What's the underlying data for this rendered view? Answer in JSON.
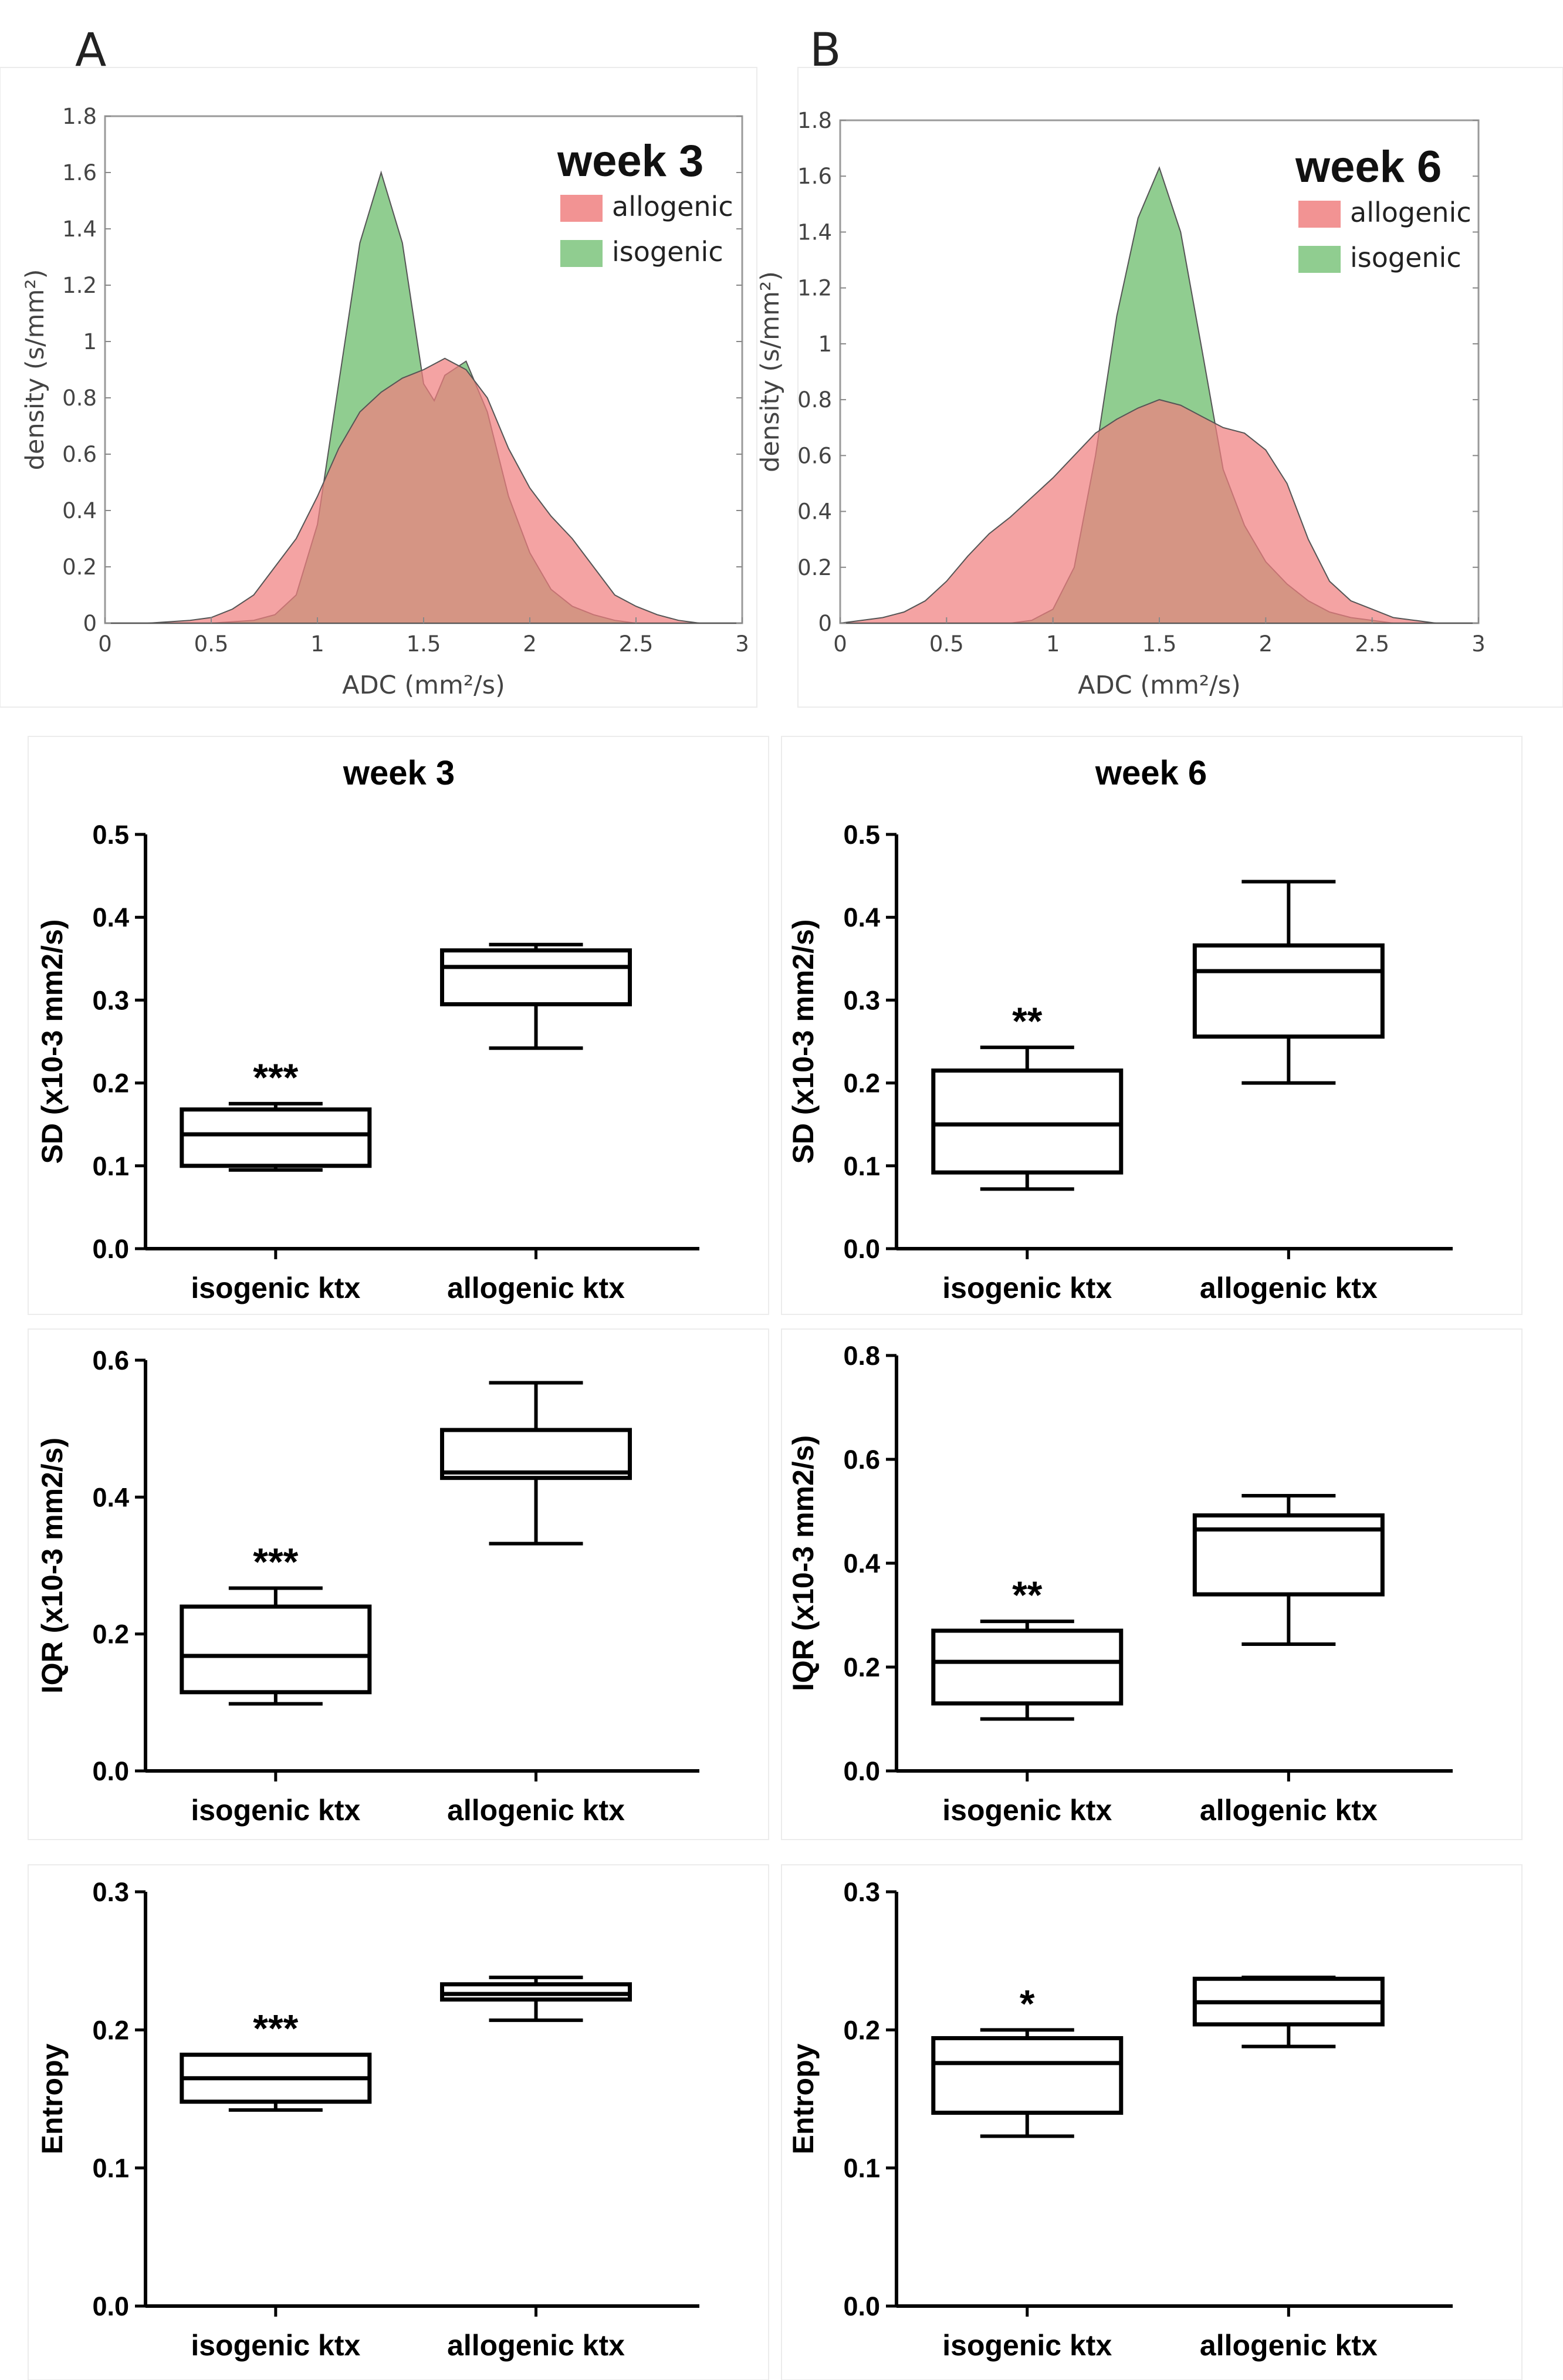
{
  "panel_labels": [
    "A",
    "B"
  ],
  "chart_data": [
    {
      "type": "area",
      "panel": "A",
      "title": "week 3",
      "xlabel": "ADC (mm²/s)",
      "ylabel": "density (s/mm²)",
      "xlim": [
        0,
        3
      ],
      "ylim": [
        0,
        1.8
      ],
      "xticks": [
        0,
        0.5,
        1,
        1.5,
        2,
        2.5,
        3
      ],
      "xtick_labels": [
        "0",
        "0.5",
        "1",
        "1.5",
        "2",
        "2.5",
        "3"
      ],
      "yticks": [
        0,
        0.2,
        0.4,
        0.6,
        0.8,
        1,
        1.2,
        1.4,
        1.6,
        1.8
      ],
      "ytick_labels": [
        "0",
        "0.2",
        "0.4",
        "0.6",
        "0.8",
        "1",
        "1.2",
        "1.4",
        "1.6",
        "1.8"
      ],
      "x": [
        0,
        0.2,
        0.4,
        0.5,
        0.6,
        0.7,
        0.8,
        0.9,
        1.0,
        1.1,
        1.2,
        1.3,
        1.4,
        1.5,
        1.55,
        1.6,
        1.7,
        1.8,
        1.9,
        2.0,
        2.1,
        2.2,
        2.3,
        2.4,
        2.5,
        2.6,
        2.7,
        2.8,
        3.0
      ],
      "series": [
        {
          "name": "allogenic",
          "color": "#f08080",
          "values": [
            0,
            0,
            0.01,
            0.02,
            0.05,
            0.1,
            0.2,
            0.3,
            0.45,
            0.62,
            0.75,
            0.82,
            0.87,
            0.9,
            0.92,
            0.94,
            0.9,
            0.8,
            0.62,
            0.48,
            0.38,
            0.3,
            0.2,
            0.1,
            0.06,
            0.03,
            0.01,
            0,
            0
          ]
        },
        {
          "name": "isogenic",
          "color": "#7cc47c",
          "values": [
            0,
            0,
            0,
            0,
            0.005,
            0.01,
            0.03,
            0.1,
            0.35,
            0.85,
            1.35,
            1.6,
            1.35,
            0.85,
            0.79,
            0.88,
            0.93,
            0.75,
            0.45,
            0.25,
            0.12,
            0.06,
            0.03,
            0.01,
            0,
            0,
            0,
            0,
            0
          ]
        }
      ]
    },
    {
      "type": "area",
      "panel": "B",
      "title": "week 6",
      "xlabel": "ADC (mm²/s)",
      "ylabel": "density (s/mm²)",
      "xlim": [
        0,
        3
      ],
      "ylim": [
        0,
        1.8
      ],
      "xticks": [
        0,
        0.5,
        1,
        1.5,
        2,
        2.5,
        3
      ],
      "xtick_labels": [
        "0",
        "0.5",
        "1",
        "1.5",
        "2",
        "2.5",
        "3"
      ],
      "yticks": [
        0,
        0.2,
        0.4,
        0.6,
        0.8,
        1,
        1.2,
        1.4,
        1.6,
        1.8
      ],
      "ytick_labels": [
        "0",
        "0.2",
        "0.4",
        "0.6",
        "0.8",
        "1",
        "1.2",
        "1.4",
        "1.6",
        "1.8"
      ],
      "x": [
        0,
        0.1,
        0.2,
        0.3,
        0.4,
        0.5,
        0.6,
        0.7,
        0.8,
        0.9,
        1.0,
        1.1,
        1.2,
        1.3,
        1.4,
        1.5,
        1.6,
        1.7,
        1.8,
        1.9,
        2.0,
        2.1,
        2.2,
        2.3,
        2.4,
        2.5,
        2.6,
        2.7,
        2.8,
        3.0
      ],
      "series": [
        {
          "name": "allogenic",
          "color": "#f08080",
          "values": [
            0,
            0.01,
            0.02,
            0.04,
            0.08,
            0.15,
            0.24,
            0.32,
            0.38,
            0.45,
            0.52,
            0.6,
            0.68,
            0.73,
            0.77,
            0.8,
            0.78,
            0.74,
            0.7,
            0.68,
            0.62,
            0.5,
            0.3,
            0.15,
            0.08,
            0.05,
            0.02,
            0.01,
            0,
            0
          ]
        },
        {
          "name": "isogenic",
          "color": "#7cc47c",
          "values": [
            0,
            0,
            0,
            0,
            0,
            0,
            0,
            0,
            0,
            0.01,
            0.05,
            0.2,
            0.6,
            1.1,
            1.45,
            1.63,
            1.4,
            0.98,
            0.55,
            0.35,
            0.22,
            0.14,
            0.08,
            0.04,
            0.02,
            0.01,
            0,
            0,
            0,
            0
          ]
        }
      ]
    },
    {
      "type": "box",
      "title": "week 3",
      "ylabel": "SD (x10-3 mm2/s)",
      "ylim": [
        0,
        0.5
      ],
      "yticks": [
        0,
        0.1,
        0.2,
        0.3,
        0.4,
        0.5
      ],
      "ytick_labels": [
        "0.0",
        "0.1",
        "0.2",
        "0.3",
        "0.4",
        "0.5"
      ],
      "categories": [
        "isogenic ktx",
        "allogenic ktx"
      ],
      "boxes": [
        {
          "min": 0.095,
          "q1": 0.1,
          "median": 0.138,
          "q3": 0.168,
          "max": 0.175,
          "sig": "***"
        },
        {
          "min": 0.242,
          "q1": 0.295,
          "median": 0.34,
          "q3": 0.36,
          "max": 0.367,
          "sig": ""
        }
      ]
    },
    {
      "type": "box",
      "title": "week 6",
      "ylabel": "SD (x10-3 mm2/s)",
      "ylim": [
        0,
        0.5
      ],
      "yticks": [
        0,
        0.1,
        0.2,
        0.3,
        0.4,
        0.5
      ],
      "ytick_labels": [
        "0.0",
        "0.1",
        "0.2",
        "0.3",
        "0.4",
        "0.5"
      ],
      "categories": [
        "isogenic ktx",
        "allogenic ktx"
      ],
      "boxes": [
        {
          "min": 0.072,
          "q1": 0.092,
          "median": 0.15,
          "q3": 0.215,
          "max": 0.243,
          "sig": "**"
        },
        {
          "min": 0.2,
          "q1": 0.256,
          "median": 0.335,
          "q3": 0.366,
          "max": 0.443,
          "sig": ""
        }
      ]
    },
    {
      "type": "box",
      "title": "",
      "ylabel": "IQR (x10-3 mm2/s)",
      "ylim": [
        0,
        0.6
      ],
      "yticks": [
        0,
        0.2,
        0.4,
        0.6
      ],
      "ytick_labels": [
        "0.0",
        "0.2",
        "0.4",
        "0.6"
      ],
      "categories": [
        "isogenic ktx",
        "allogenic ktx"
      ],
      "boxes": [
        {
          "min": 0.098,
          "q1": 0.115,
          "median": 0.168,
          "q3": 0.24,
          "max": 0.267,
          "sig": "***"
        },
        {
          "min": 0.332,
          "q1": 0.428,
          "median": 0.436,
          "q3": 0.498,
          "max": 0.567,
          "sig": ""
        }
      ]
    },
    {
      "type": "box",
      "title": "",
      "ylabel": "IQR (x10-3 mm2/s)",
      "ylim": [
        0,
        0.8
      ],
      "yticks": [
        0,
        0.2,
        0.4,
        0.6,
        0.8
      ],
      "ytick_labels": [
        "0.0",
        "0.2",
        "0.4",
        "0.6",
        "0.8"
      ],
      "categories": [
        "isogenic ktx",
        "allogenic ktx"
      ],
      "boxes": [
        {
          "min": 0.1,
          "q1": 0.13,
          "median": 0.21,
          "q3": 0.27,
          "max": 0.288,
          "sig": "**"
        },
        {
          "min": 0.244,
          "q1": 0.34,
          "median": 0.465,
          "q3": 0.492,
          "max": 0.53,
          "sig": ""
        }
      ]
    },
    {
      "type": "box",
      "title": "",
      "ylabel": "Entropy",
      "ylim": [
        0,
        0.3
      ],
      "yticks": [
        0,
        0.1,
        0.2,
        0.3
      ],
      "ytick_labels": [
        "0.0",
        "0.1",
        "0.2",
        "0.3"
      ],
      "categories": [
        "isogenic ktx",
        "allogenic ktx"
      ],
      "boxes": [
        {
          "min": 0.142,
          "q1": 0.148,
          "median": 0.165,
          "q3": 0.182,
          "max": 0.182,
          "sig": "***"
        },
        {
          "min": 0.207,
          "q1": 0.222,
          "median": 0.226,
          "q3": 0.233,
          "max": 0.238,
          "sig": ""
        }
      ]
    },
    {
      "type": "box",
      "title": "",
      "ylabel": "Entropy",
      "ylim": [
        0,
        0.3
      ],
      "yticks": [
        0,
        0.1,
        0.2,
        0.3
      ],
      "ytick_labels": [
        "0.0",
        "0.1",
        "0.2",
        "0.3"
      ],
      "categories": [
        "isogenic ktx",
        "allogenic ktx"
      ],
      "boxes": [
        {
          "min": 0.123,
          "q1": 0.14,
          "median": 0.176,
          "q3": 0.194,
          "max": 0.2,
          "sig": "*"
        },
        {
          "min": 0.188,
          "q1": 0.204,
          "median": 0.22,
          "q3": 0.237,
          "max": 0.238,
          "sig": ""
        }
      ]
    }
  ]
}
